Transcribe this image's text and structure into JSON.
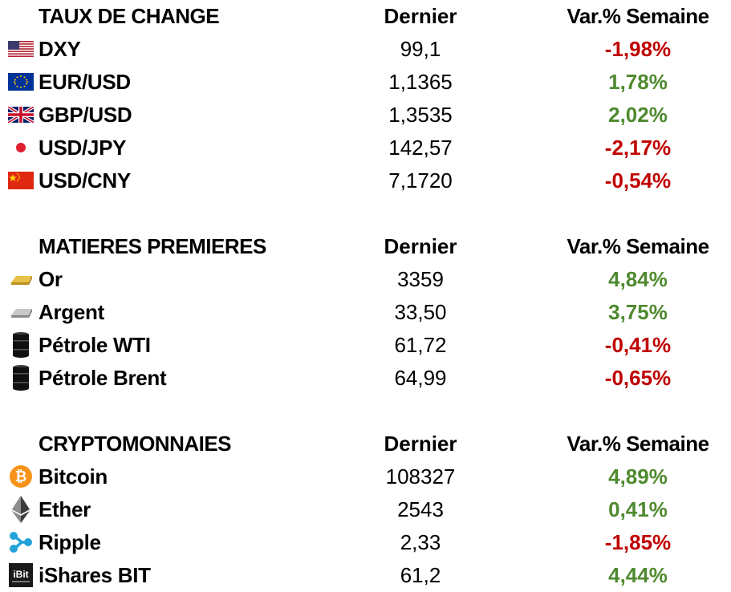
{
  "colors": {
    "negative": "#c00000",
    "positive": "#4f8a2f"
  },
  "sections": [
    {
      "title": "TAUX DE CHANGE",
      "col_last": "Dernier",
      "col_var": "Var.% Semaine",
      "rows": [
        {
          "icon": "us-flag-icon",
          "name": "DXY",
          "last": "99,1",
          "var": "-1,98%",
          "dir": "neg"
        },
        {
          "icon": "eu-flag-icon",
          "name": "EUR/USD",
          "last": "1,1365",
          "var": "1,78%",
          "dir": "pos"
        },
        {
          "icon": "uk-flag-icon",
          "name": "GBP/USD",
          "last": "1,3535",
          "var": "2,02%",
          "dir": "pos"
        },
        {
          "icon": "japan-flag-icon",
          "name": "USD/JPY",
          "last": "142,57",
          "var": "-2,17%",
          "dir": "neg"
        },
        {
          "icon": "china-flag-icon",
          "name": "USD/CNY",
          "last": "7,1720",
          "var": "-0,54%",
          "dir": "neg"
        }
      ]
    },
    {
      "title": "MATIERES PREMIERES",
      "col_last": "Dernier",
      "col_var": "Var.% Semaine",
      "rows": [
        {
          "icon": "gold-bar-icon",
          "name": "Or",
          "last": "3359",
          "var": "4,84%",
          "dir": "pos"
        },
        {
          "icon": "silver-bar-icon",
          "name": "Argent",
          "last": "33,50",
          "var": "3,75%",
          "dir": "pos"
        },
        {
          "icon": "oil-barrel-icon",
          "name": "Pétrole WTI",
          "last": "61,72",
          "var": "-0,41%",
          "dir": "neg"
        },
        {
          "icon": "oil-barrel-icon",
          "name": "Pétrole Brent",
          "last": "64,99",
          "var": "-0,65%",
          "dir": "neg"
        }
      ]
    },
    {
      "title": "CRYPTOMONNAIES",
      "col_last": "Dernier",
      "col_var": "Var.% Semaine",
      "rows": [
        {
          "icon": "bitcoin-icon",
          "name": "Bitcoin",
          "last": "108327",
          "var": "4,89%",
          "dir": "pos"
        },
        {
          "icon": "ethereum-icon",
          "name": "Ether",
          "last": "2543",
          "var": "0,41%",
          "dir": "pos"
        },
        {
          "icon": "ripple-icon",
          "name": "Ripple",
          "last": "2,33",
          "var": "-1,85%",
          "dir": "neg"
        },
        {
          "icon": "ibit-logo-icon",
          "name": "iShares BIT",
          "last": "61,2",
          "var": "4,44%",
          "dir": "pos"
        }
      ]
    }
  ]
}
